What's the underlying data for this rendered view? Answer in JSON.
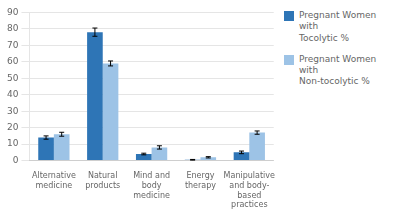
{
  "chart_data": {
    "type": "bar",
    "categories": [
      "Alternative\nmedicine",
      "Natural\nproducts",
      "Mind and\nbody\nmedicine",
      "Energy\ntherapy",
      "Manipulative\nand body-\nbased\npractices"
    ],
    "series": [
      {
        "name": "Pregnant Women with\nTocolytic %",
        "color": "#2E75B6",
        "values": [
          14,
          78,
          4,
          0.5,
          5
        ],
        "errors": [
          1.0,
          2.5,
          0.5,
          0.2,
          0.8
        ]
      },
      {
        "name": "Pregnant Women with\nNon-tocolytic %",
        "color": "#9DC3E6",
        "values": [
          16,
          59,
          8,
          2,
          17
        ],
        "errors": [
          1.2,
          1.5,
          1.0,
          0.4,
          1.0
        ]
      }
    ],
    "ylim": [
      0,
      90
    ],
    "yticks": [
      0,
      10,
      20,
      30,
      40,
      50,
      60,
      70,
      80,
      90
    ],
    "grid": true,
    "legend": "right"
  }
}
